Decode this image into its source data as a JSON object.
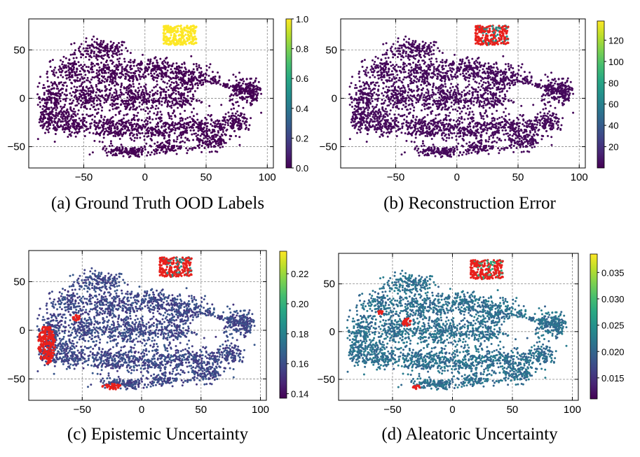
{
  "chart_data": [
    {
      "type": "scatter",
      "panel": "a",
      "caption": "(a) Ground Truth OOD Labels",
      "xlim": [
        -95,
        105
      ],
      "ylim": [
        -72,
        82
      ],
      "xticks": [
        -50,
        0,
        50,
        100
      ],
      "xtick_labels": [
        "−50",
        "0",
        "50",
        "100"
      ],
      "yticks": [
        -50,
        0,
        50
      ],
      "ytick_labels": [
        "−50",
        "0",
        "50"
      ],
      "grid": true,
      "colormap": "viridis",
      "colorbar": {
        "min": 0.0,
        "max": 1.0,
        "ticks": [
          0.0,
          0.2,
          0.4,
          0.6,
          0.8,
          1.0
        ],
        "tick_labels": [
          "0.0",
          "0.2",
          "0.4",
          "0.6",
          "0.8",
          "1.0"
        ]
      },
      "in_distribution_level": 0.0,
      "ood_level": 1.0,
      "ood_marked_red": false,
      "in_distribution_cluster": "large manifold spanning x ≈ −90 to 95, y ≈ −60 to 65",
      "ood_cluster": {
        "x_range": [
          15,
          42
        ],
        "y_range": [
          55,
          75
        ]
      }
    },
    {
      "type": "scatter",
      "panel": "b",
      "caption": "(b) Reconstruction Error",
      "xlim": [
        -95,
        105
      ],
      "ylim": [
        -72,
        82
      ],
      "xticks": [
        -50,
        0,
        50,
        100
      ],
      "xtick_labels": [
        "−50",
        "0",
        "50",
        "100"
      ],
      "yticks": [
        -50,
        0,
        50
      ],
      "ytick_labels": [
        "−50",
        "0",
        "50"
      ],
      "grid": true,
      "colormap": "viridis",
      "colorbar": {
        "min": 0,
        "max": 138,
        "ticks": [
          20,
          40,
          60,
          80,
          100,
          120
        ],
        "tick_labels": [
          "20",
          "40",
          "60",
          "80",
          "100",
          "120"
        ]
      },
      "in_distribution_level": 3,
      "ood_level": 70,
      "ood_marked_red": true,
      "ood_cluster": {
        "x_range": [
          15,
          42
        ],
        "y_range": [
          55,
          75
        ]
      }
    },
    {
      "type": "scatter",
      "panel": "c",
      "caption": "(c) Epistemic Uncertainty",
      "xlim": [
        -95,
        105
      ],
      "ylim": [
        -72,
        82
      ],
      "xticks": [
        -50,
        0,
        50,
        100
      ],
      "xtick_labels": [
        "−50",
        "0",
        "50",
        "100"
      ],
      "yticks": [
        -50,
        0,
        50
      ],
      "ytick_labels": [
        "−50",
        "0",
        "50"
      ],
      "grid": true,
      "colormap": "viridis",
      "colorbar": {
        "min": 0.137,
        "max": 0.235,
        "ticks": [
          0.14,
          0.16,
          0.18,
          0.2,
          0.22
        ],
        "tick_labels": [
          "0.14",
          "0.16",
          "0.18",
          "0.20",
          "0.22"
        ]
      },
      "in_distribution_level": 0.158,
      "ood_level": 0.185,
      "ood_marked_red": true,
      "ood_cluster": {
        "x_range": [
          15,
          42
        ],
        "y_range": [
          55,
          75
        ]
      },
      "red_outlier_regions": [
        {
          "x": -80,
          "y": -15,
          "rx": 7,
          "ry": 20
        },
        {
          "x": -25,
          "y": -58,
          "rx": 8,
          "ry": 3
        },
        {
          "x": -55,
          "y": 13,
          "rx": 3,
          "ry": 3
        }
      ]
    },
    {
      "type": "scatter",
      "panel": "d",
      "caption": "(d) Aleatoric Uncertainty",
      "xlim": [
        -95,
        105
      ],
      "ylim": [
        -72,
        82
      ],
      "xticks": [
        -50,
        0,
        50,
        100
      ],
      "xtick_labels": [
        "−50",
        "0",
        "50",
        "100"
      ],
      "yticks": [
        -50,
        0,
        50
      ],
      "ytick_labels": [
        "−50",
        "0",
        "50"
      ],
      "grid": true,
      "colormap": "viridis",
      "colorbar": {
        "min": 0.011,
        "max": 0.0385,
        "ticks": [
          0.015,
          0.02,
          0.025,
          0.03,
          0.035
        ],
        "tick_labels": [
          "0.015",
          "0.020",
          "0.025",
          "0.030",
          "0.035"
        ]
      },
      "in_distribution_level": 0.021,
      "ood_level": 0.028,
      "ood_marked_red": true,
      "ood_cluster": {
        "x_range": [
          15,
          42
        ],
        "y_range": [
          55,
          75
        ]
      },
      "red_outlier_regions": [
        {
          "x": -38,
          "y": 10,
          "rx": 4,
          "ry": 4
        },
        {
          "x": -30,
          "y": -58,
          "rx": 3,
          "ry": 2
        },
        {
          "x": -60,
          "y": 20,
          "rx": 2,
          "ry": 2
        }
      ]
    }
  ]
}
